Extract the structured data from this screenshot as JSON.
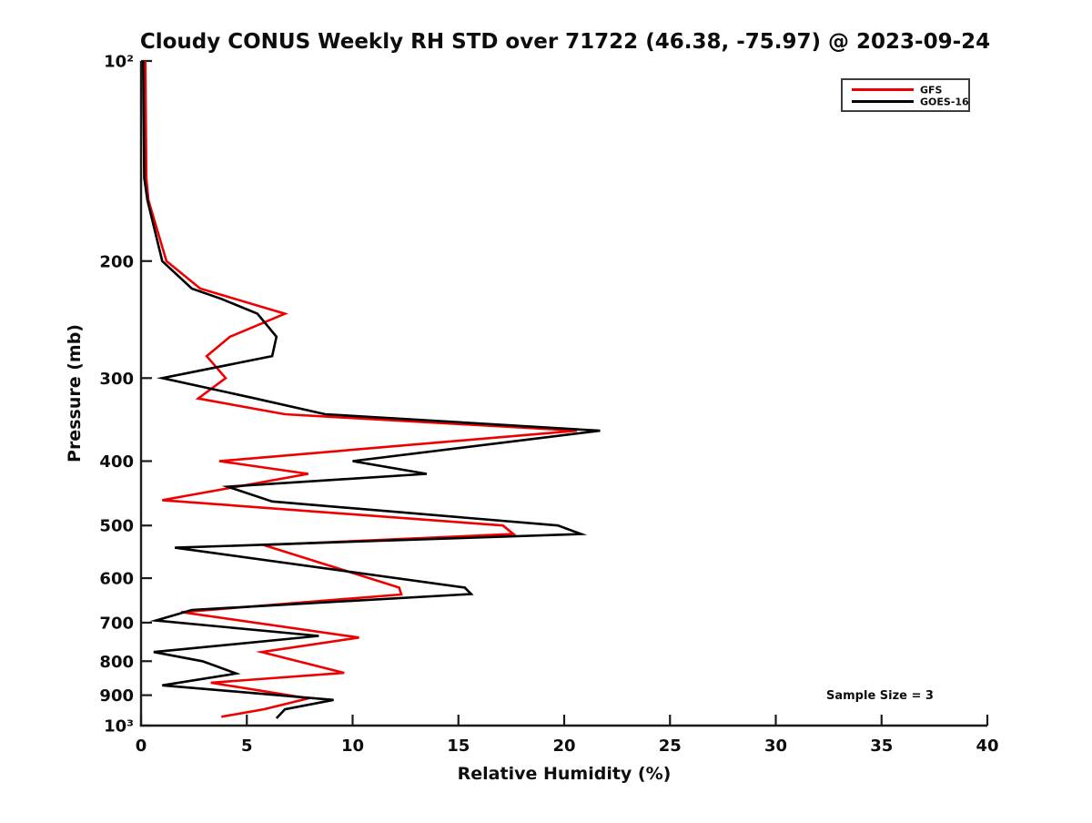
{
  "title": "Cloudy CONUS Weekly RH STD over 71722 (46.38, -75.97) @ 2023-09-24",
  "annotation": "Sample Size = 3",
  "colors": {
    "gfs": "#ee0000",
    "goes16": "#000000",
    "axis": "#1a1a1a",
    "legend_border": "#3c3c3c",
    "background": "#ffffff"
  },
  "legend": [
    {
      "label": "GFS",
      "color": "#ee0000"
    },
    {
      "label": "GOES-16",
      "color": "#000000"
    }
  ],
  "axes": {
    "x": {
      "label": "Relative Humidity (%)",
      "ticks": [
        0,
        5,
        10,
        15,
        20,
        25,
        30,
        35,
        40
      ],
      "range": [
        0,
        40
      ]
    },
    "y": {
      "label": "Pressure (mb)",
      "scale": "log10",
      "inverted": true,
      "range": [
        100,
        1000
      ],
      "ticks": [
        {
          "v": 100,
          "label": "10²"
        },
        {
          "v": 200,
          "label": "200"
        },
        {
          "v": 300,
          "label": "300"
        },
        {
          "v": 400,
          "label": "400"
        },
        {
          "v": 500,
          "label": "500"
        },
        {
          "v": 600,
          "label": "600"
        },
        {
          "v": 700,
          "label": "700"
        },
        {
          "v": 800,
          "label": "800"
        },
        {
          "v": 900,
          "label": "900"
        },
        {
          "v": 1000,
          "label": "10³"
        }
      ]
    }
  },
  "chart_data": {
    "type": "line",
    "title": "Cloudy CONUS Weekly RH STD over 71722 (46.38, -75.97) @ 2023-09-24",
    "xlabel": "Relative Humidity (%)",
    "ylabel": "Pressure (mb)",
    "xlim": [
      0,
      40
    ],
    "ylim": [
      100,
      1000
    ],
    "y_scale": "log",
    "y_inverted": true,
    "grid": false,
    "legend_position": "top-right",
    "annotations": [
      "Sample Size = 3"
    ],
    "point_format": [
      "pressure_mb",
      "rh_std_percent"
    ],
    "series": [
      {
        "name": "GFS",
        "color": "#ee0000",
        "points": [
          [
            100,
            0.2
          ],
          [
            150,
            0.25
          ],
          [
            162,
            0.35
          ],
          [
            200,
            1.2
          ],
          [
            220,
            2.8
          ],
          [
            240,
            6.8
          ],
          [
            260,
            4.2
          ],
          [
            278,
            3.1
          ],
          [
            300,
            4.0
          ],
          [
            322,
            2.7
          ],
          [
            340,
            6.8
          ],
          [
            360,
            20.6
          ],
          [
            400,
            3.7
          ],
          [
            418,
            7.9
          ],
          [
            458,
            1.0
          ],
          [
            500,
            17.1
          ],
          [
            515,
            17.6
          ],
          [
            535,
            5.8
          ],
          [
            620,
            12.2
          ],
          [
            635,
            12.3
          ],
          [
            675,
            1.9
          ],
          [
            737,
            10.3
          ],
          [
            775,
            5.7
          ],
          [
            833,
            9.6
          ],
          [
            862,
            3.3
          ],
          [
            910,
            7.9
          ],
          [
            945,
            5.8
          ],
          [
            970,
            3.8
          ]
        ]
      },
      {
        "name": "GOES-16",
        "color": "#000000",
        "points": [
          [
            100,
            0.1
          ],
          [
            150,
            0.15
          ],
          [
            162,
            0.3
          ],
          [
            200,
            1.0
          ],
          [
            220,
            2.4
          ],
          [
            228,
            3.8
          ],
          [
            240,
            5.5
          ],
          [
            260,
            6.4
          ],
          [
            278,
            6.2
          ],
          [
            300,
            1.0
          ],
          [
            322,
            5.4
          ],
          [
            340,
            8.7
          ],
          [
            360,
            21.7
          ],
          [
            400,
            10.0
          ],
          [
            418,
            13.5
          ],
          [
            437,
            4.1
          ],
          [
            460,
            6.2
          ],
          [
            500,
            19.7
          ],
          [
            515,
            20.8
          ],
          [
            540,
            1.6
          ],
          [
            620,
            15.3
          ],
          [
            634,
            15.6
          ],
          [
            670,
            2.4
          ],
          [
            695,
            0.7
          ],
          [
            733,
            8.4
          ],
          [
            775,
            0.6
          ],
          [
            800,
            2.9
          ],
          [
            815,
            3.6
          ],
          [
            835,
            4.5
          ],
          [
            870,
            1.0
          ],
          [
            915,
            9.1
          ],
          [
            945,
            6.8
          ],
          [
            975,
            6.4
          ]
        ]
      }
    ]
  }
}
